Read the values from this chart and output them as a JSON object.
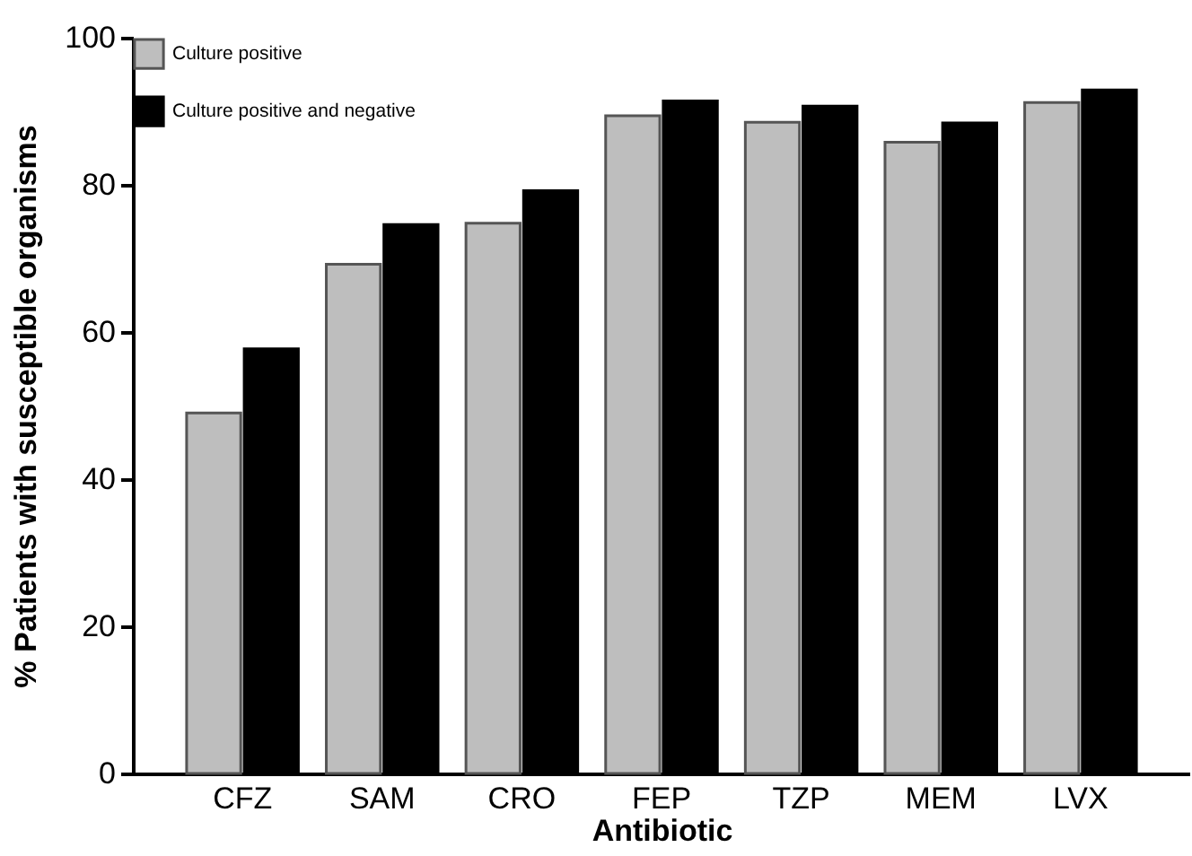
{
  "chart_data": {
    "type": "bar",
    "xlabel": "Antibiotic",
    "ylabel": "% Patients with susceptible organisms",
    "categories": [
      "CFZ",
      "SAM",
      "CRO",
      "FEP",
      "TZP",
      "MEM",
      "LVX"
    ],
    "series": [
      {
        "name": "Culture positive",
        "color": "#bebebe",
        "values": [
          49.0,
          69.2,
          74.8,
          89.4,
          88.5,
          85.8,
          91.2
        ]
      },
      {
        "name": "Culture positive and negative",
        "color": "#000000",
        "values": [
          57.7,
          74.6,
          79.2,
          91.4,
          90.7,
          88.4,
          92.9
        ]
      }
    ],
    "ylim": [
      0,
      100
    ],
    "yticks": [
      0,
      20,
      40,
      60,
      80,
      100
    ],
    "grid": false,
    "legend": "top left"
  }
}
